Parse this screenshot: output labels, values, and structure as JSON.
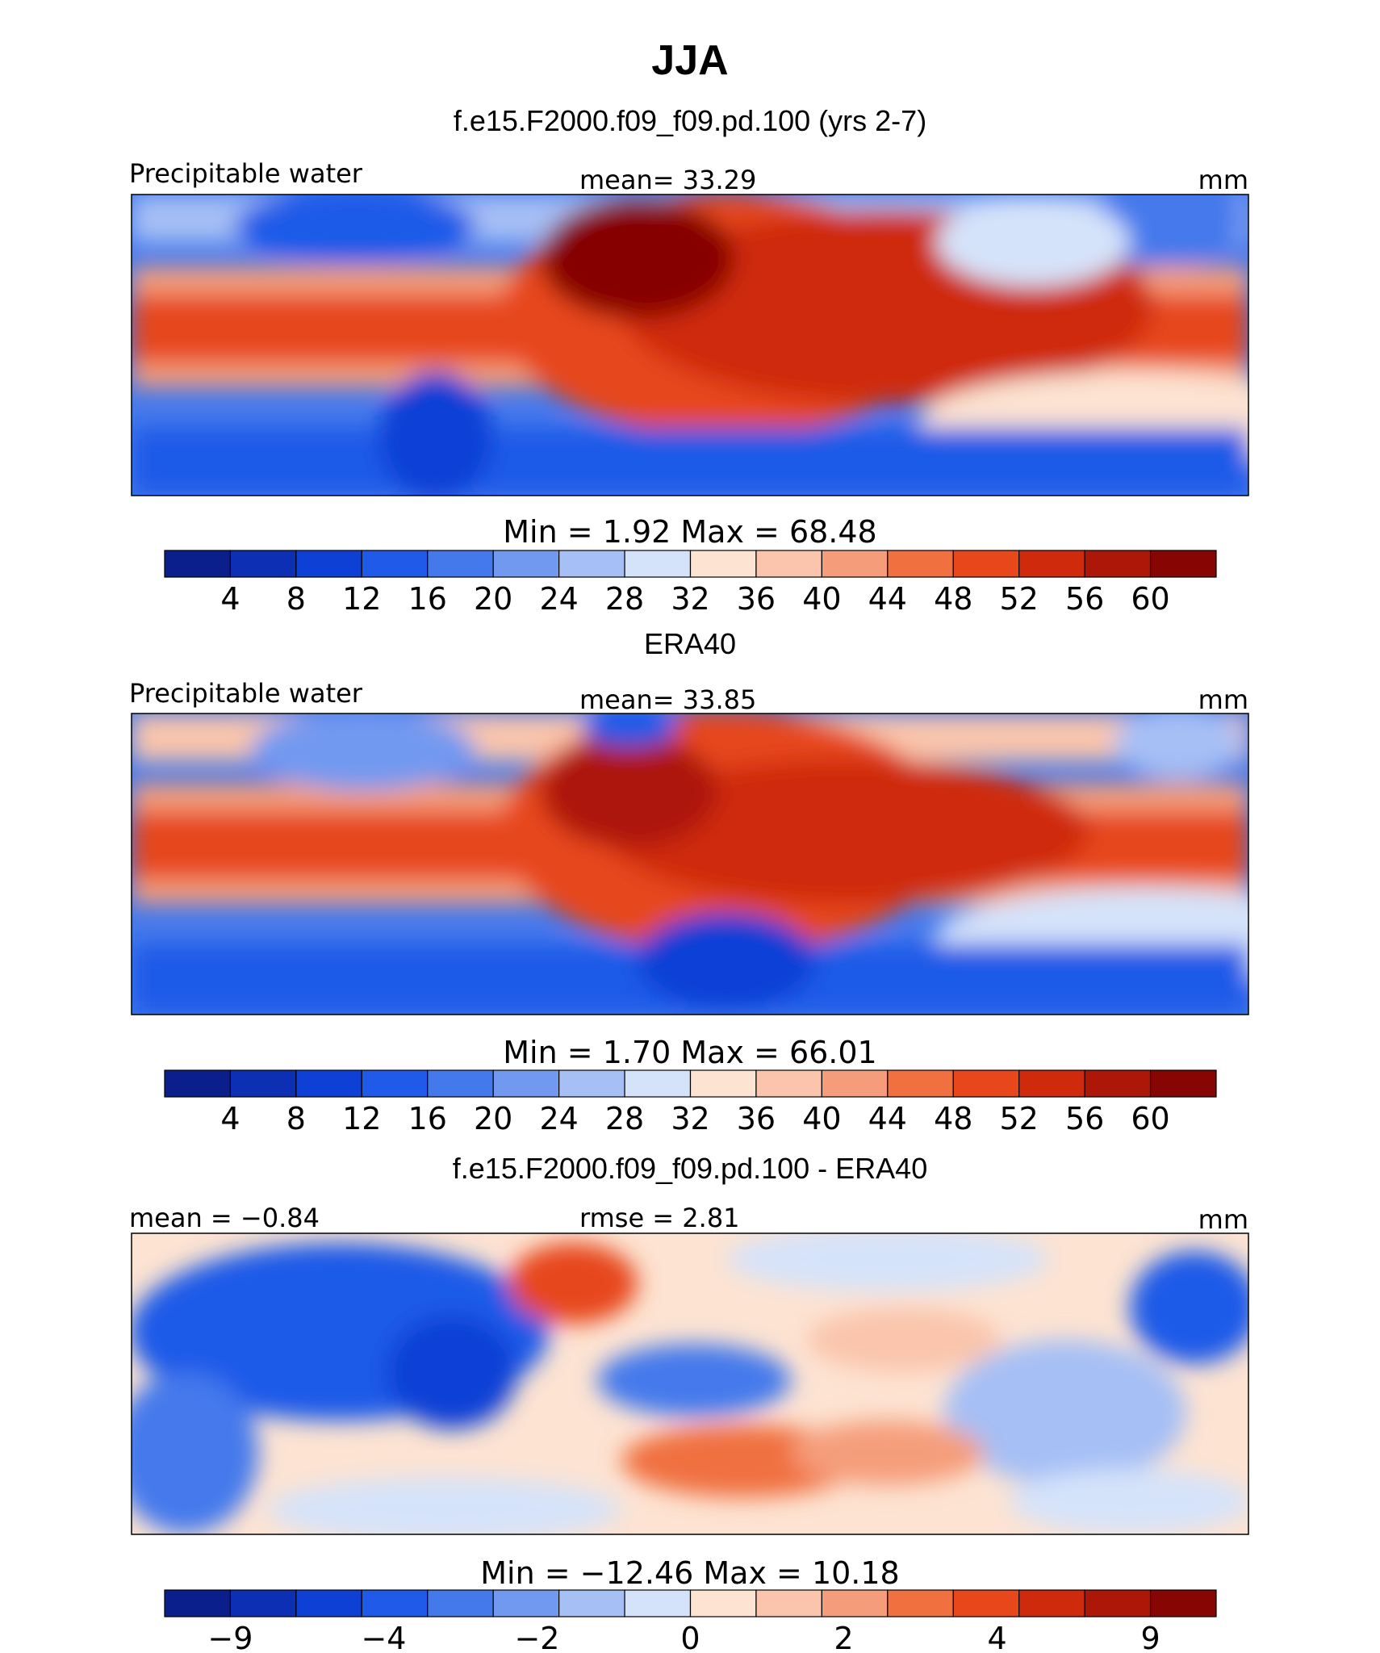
{
  "title": "JJA",
  "panels": [
    {
      "subtitle": "f.e15.F2000.f09_f09.pd.100 (yrs 2-7)",
      "left_label": "Precipitable water",
      "center_label": "mean=   33.29",
      "right_label": "mm",
      "minmax_label": "Min  =    1.92  Max  =   68.48",
      "kind": "abs",
      "colorbar": {
        "colors": [
          "#0a1e8c",
          "#0c2fb4",
          "#0f40d6",
          "#1f5ae8",
          "#4479ec",
          "#7299f0",
          "#a6bff5",
          "#d5e3fa",
          "#fde3d2",
          "#fac5ac",
          "#f59d7a",
          "#f0703f",
          "#e7471a",
          "#cf2a0b",
          "#ad1707",
          "#870503"
        ],
        "ticks": [
          "4",
          "8",
          "12",
          "16",
          "20",
          "24",
          "28",
          "32",
          "36",
          "40",
          "44",
          "48",
          "52",
          "56",
          "60"
        ]
      }
    },
    {
      "subtitle": "ERA40",
      "left_label": "Precipitable water",
      "center_label": "mean=   33.85",
      "right_label": "mm",
      "minmax_label": "Min  =    1.70  Max  =   66.01",
      "kind": "abs",
      "colorbar": {
        "colors": [
          "#0a1e8c",
          "#0c2fb4",
          "#0f40d6",
          "#1f5ae8",
          "#4479ec",
          "#7299f0",
          "#a6bff5",
          "#d5e3fa",
          "#fde3d2",
          "#fac5ac",
          "#f59d7a",
          "#f0703f",
          "#e7471a",
          "#cf2a0b",
          "#ad1707",
          "#870503"
        ],
        "ticks": [
          "4",
          "8",
          "12",
          "16",
          "20",
          "24",
          "28",
          "32",
          "36",
          "40",
          "44",
          "48",
          "52",
          "56",
          "60"
        ]
      }
    },
    {
      "subtitle": "f.e15.F2000.f09_f09.pd.100 - ERA40",
      "left_label": "mean =   −0.84",
      "center_label": "rmse =    2.81",
      "right_label": "mm",
      "minmax_label": "Min  = −12.46  Max  =   10.18",
      "kind": "diff",
      "colorbar": {
        "colors": [
          "#0a1e8c",
          "#0c2fb4",
          "#0f40d6",
          "#1f5ae8",
          "#4479ec",
          "#7299f0",
          "#a6bff5",
          "#d5e3fa",
          "#fde3d2",
          "#fac5ac",
          "#f59d7a",
          "#f0703f",
          "#e7471a",
          "#cf2a0b",
          "#ad1707",
          "#870503"
        ],
        "ticks": [
          "−9",
          "",
          "−4",
          "",
          "−2",
          "",
          "0",
          "",
          "2",
          "",
          "4",
          "",
          "9"
        ]
      }
    }
  ]
}
